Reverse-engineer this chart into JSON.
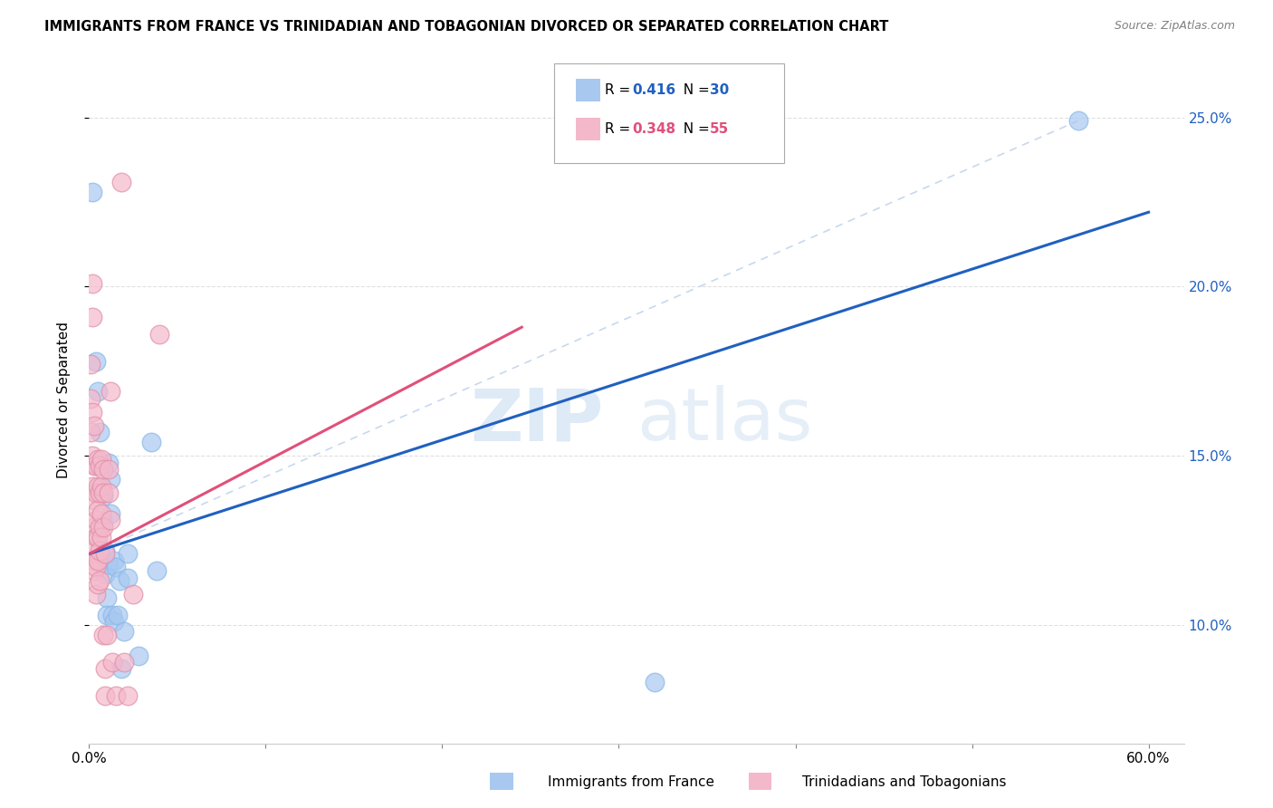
{
  "title": "IMMIGRANTS FROM FRANCE VS TRINIDADIAN AND TOBAGONIAN DIVORCED OR SEPARATED CORRELATION CHART",
  "source": "Source: ZipAtlas.com",
  "ylabel": "Divorced or Separated",
  "xlim": [
    0.0,
    0.62
  ],
  "ylim": [
    0.065,
    0.268
  ],
  "yticks_right": [
    0.1,
    0.15,
    0.2,
    0.25
  ],
  "ytick_labels_right": [
    "10.0%",
    "15.0%",
    "20.0%",
    "25.0%"
  ],
  "blue_scatter": [
    [
      0.002,
      0.228
    ],
    [
      0.004,
      0.178
    ],
    [
      0.005,
      0.169
    ],
    [
      0.006,
      0.157
    ],
    [
      0.007,
      0.147
    ],
    [
      0.008,
      0.138
    ],
    [
      0.008,
      0.13
    ],
    [
      0.009,
      0.122
    ],
    [
      0.009,
      0.115
    ],
    [
      0.01,
      0.108
    ],
    [
      0.01,
      0.103
    ],
    [
      0.011,
      0.148
    ],
    [
      0.011,
      0.118
    ],
    [
      0.012,
      0.143
    ],
    [
      0.012,
      0.133
    ],
    [
      0.013,
      0.103
    ],
    [
      0.014,
      0.119
    ],
    [
      0.014,
      0.101
    ],
    [
      0.015,
      0.117
    ],
    [
      0.016,
      0.103
    ],
    [
      0.017,
      0.113
    ],
    [
      0.018,
      0.087
    ],
    [
      0.02,
      0.098
    ],
    [
      0.022,
      0.121
    ],
    [
      0.022,
      0.114
    ],
    [
      0.028,
      0.091
    ],
    [
      0.035,
      0.154
    ],
    [
      0.038,
      0.116
    ],
    [
      0.32,
      0.083
    ],
    [
      0.56,
      0.249
    ]
  ],
  "pink_scatter": [
    [
      0.001,
      0.177
    ],
    [
      0.001,
      0.167
    ],
    [
      0.001,
      0.157
    ],
    [
      0.002,
      0.201
    ],
    [
      0.002,
      0.191
    ],
    [
      0.002,
      0.163
    ],
    [
      0.002,
      0.15
    ],
    [
      0.002,
      0.141
    ],
    [
      0.003,
      0.159
    ],
    [
      0.003,
      0.147
    ],
    [
      0.003,
      0.137
    ],
    [
      0.003,
      0.129
    ],
    [
      0.003,
      0.123
    ],
    [
      0.003,
      0.119
    ],
    [
      0.003,
      0.116
    ],
    [
      0.004,
      0.147
    ],
    [
      0.004,
      0.139
    ],
    [
      0.004,
      0.131
    ],
    [
      0.004,
      0.126
    ],
    [
      0.004,
      0.117
    ],
    [
      0.004,
      0.109
    ],
    [
      0.005,
      0.149
    ],
    [
      0.005,
      0.141
    ],
    [
      0.005,
      0.134
    ],
    [
      0.005,
      0.126
    ],
    [
      0.005,
      0.119
    ],
    [
      0.005,
      0.112
    ],
    [
      0.006,
      0.147
    ],
    [
      0.006,
      0.139
    ],
    [
      0.006,
      0.129
    ],
    [
      0.006,
      0.122
    ],
    [
      0.006,
      0.113
    ],
    [
      0.007,
      0.149
    ],
    [
      0.007,
      0.141
    ],
    [
      0.007,
      0.133
    ],
    [
      0.007,
      0.126
    ],
    [
      0.008,
      0.146
    ],
    [
      0.008,
      0.139
    ],
    [
      0.008,
      0.129
    ],
    [
      0.008,
      0.097
    ],
    [
      0.009,
      0.121
    ],
    [
      0.009,
      0.087
    ],
    [
      0.009,
      0.079
    ],
    [
      0.01,
      0.097
    ],
    [
      0.011,
      0.146
    ],
    [
      0.011,
      0.139
    ],
    [
      0.012,
      0.169
    ],
    [
      0.012,
      0.131
    ],
    [
      0.013,
      0.089
    ],
    [
      0.015,
      0.079
    ],
    [
      0.018,
      0.231
    ],
    [
      0.02,
      0.089
    ],
    [
      0.022,
      0.079
    ],
    [
      0.025,
      0.109
    ],
    [
      0.04,
      0.186
    ]
  ],
  "blue_line_x": [
    0.0,
    0.6
  ],
  "blue_line_y": [
    0.121,
    0.222
  ],
  "pink_line_x": [
    0.0,
    0.245
  ],
  "pink_line_y": [
    0.121,
    0.188
  ],
  "dashed_line_x": [
    0.0,
    0.56
  ],
  "dashed_line_y": [
    0.121,
    0.249
  ],
  "blue_color": "#a8c8f0",
  "pink_color": "#f4b8cb",
  "blue_line_color": "#2060c0",
  "pink_line_color": "#e0507a",
  "dashed_line_color": "#c8d8ee",
  "background_color": "#ffffff",
  "watermark_zip": "ZIP",
  "watermark_atlas": "atlas",
  "grid_color": "#dddddd",
  "right_axis_color": "#2060c0",
  "legend_r_color_blue": "#2060c0",
  "legend_n_color_blue": "#2060c0",
  "legend_r_color_pink": "#e0507a",
  "legend_n_color_pink": "#e0507a"
}
